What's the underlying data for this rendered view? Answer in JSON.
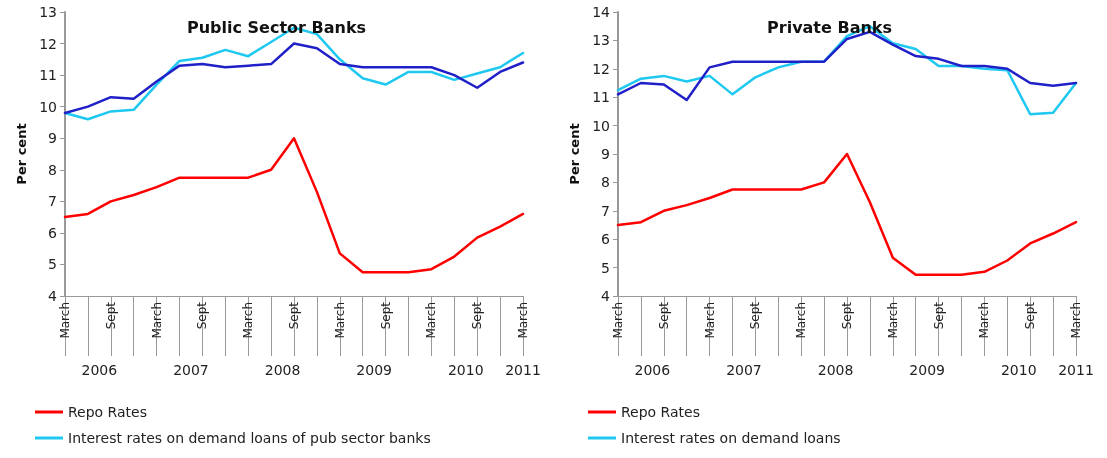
{
  "chart_data": [
    {
      "type": "line",
      "title": "Public Sector Banks",
      "ylabel": "Per cent",
      "categories": [
        "March",
        null,
        "Sept",
        null,
        "March",
        null,
        "Sept",
        null,
        "March",
        null,
        "Sept",
        null,
        "March",
        null,
        "Sept",
        null,
        "March",
        null,
        "Sept",
        null,
        "March"
      ],
      "series": [
        {
          "name": "Repo Rates",
          "color": "#ff0000",
          "values": [
            6.5,
            6.6,
            7.0,
            7.2,
            7.45,
            7.75,
            7.75,
            7.75,
            7.75,
            8.0,
            9.0,
            7.3,
            5.35,
            4.75,
            4.75,
            4.75,
            4.85,
            5.25,
            5.85,
            6.2,
            6.6
          ]
        },
        {
          "name": "Interest rates on demand loans of pub sector banks",
          "color": "#1ec8f0",
          "values": [
            9.8,
            9.6,
            9.85,
            9.9,
            10.7,
            11.45,
            11.55,
            11.8,
            11.6,
            12.05,
            12.5,
            12.3,
            11.5,
            10.9,
            10.7,
            11.1,
            11.1,
            10.85,
            11.05,
            11.25,
            11.7
          ]
        },
        {
          "color": "#2020c8",
          "values": [
            9.8,
            10.0,
            10.3,
            10.25,
            10.8,
            11.3,
            11.35,
            11.25,
            11.3,
            11.35,
            12.0,
            11.85,
            11.35,
            11.25,
            11.25,
            11.25,
            11.25,
            11.0,
            10.6,
            11.1,
            11.4
          ]
        }
      ],
      "ylim": [
        4,
        13
      ],
      "yticks": [
        4,
        5,
        6,
        7,
        8,
        9,
        10,
        11,
        12,
        13
      ],
      "grid": false,
      "legend": "bottom",
      "marker": "none",
      "line_style": "solid",
      "annotations": [
        "2006",
        "2007",
        "2008",
        "2009",
        "2010",
        "2011"
      ]
    },
    {
      "type": "line",
      "title": "Private Banks",
      "ylabel": "Per cent",
      "categories": [
        "March",
        null,
        "Sept",
        null,
        "March",
        null,
        "Sept",
        null,
        "March",
        null,
        "Sept",
        null,
        "March",
        null,
        "Sept",
        null,
        "March",
        null,
        "Sept",
        null,
        "March"
      ],
      "series": [
        {
          "name": "Repo Rates",
          "color": "#ff0000",
          "values": [
            6.5,
            6.6,
            7.0,
            7.2,
            7.45,
            7.75,
            7.75,
            7.75,
            7.75,
            8.0,
            9.0,
            7.3,
            5.35,
            4.75,
            4.75,
            4.75,
            4.85,
            5.25,
            5.85,
            6.2,
            6.6
          ]
        },
        {
          "name": "Interest rates on demand loans",
          "color": "#1ec8f0",
          "values": [
            11.25,
            11.65,
            11.75,
            11.55,
            11.75,
            11.1,
            11.7,
            12.05,
            12.25,
            12.25,
            13.15,
            13.5,
            12.9,
            12.7,
            12.1,
            12.1,
            12.0,
            11.95,
            10.4,
            10.45,
            11.5
          ]
        },
        {
          "color": "#2020c8",
          "values": [
            11.1,
            11.5,
            11.45,
            10.9,
            12.05,
            12.25,
            12.25,
            12.25,
            12.25,
            12.25,
            13.05,
            13.3,
            12.85,
            12.45,
            12.35,
            12.1,
            12.1,
            12.0,
            11.5,
            11.4,
            11.5
          ]
        }
      ],
      "ylim": [
        4,
        14
      ],
      "yticks": [
        4,
        5,
        6,
        7,
        8,
        9,
        10,
        11,
        12,
        13,
        14
      ],
      "grid": false,
      "legend": "bottom",
      "marker": "none",
      "line_style": "solid",
      "annotations": [
        "2006",
        "2007",
        "2008",
        "2009",
        "2010",
        "2011"
      ]
    }
  ]
}
